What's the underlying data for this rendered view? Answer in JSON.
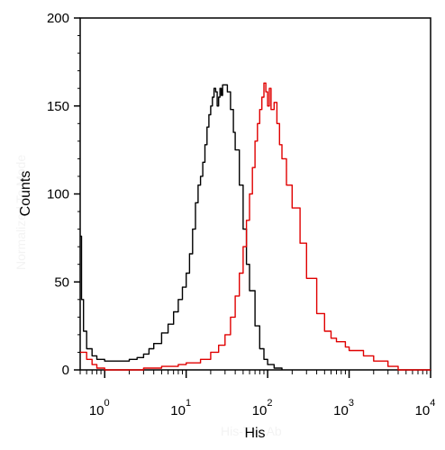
{
  "chart_data": {
    "type": "line",
    "title": "",
    "xlabel": "His",
    "ylabel": "Counts",
    "x_scale": "log",
    "xlim": [
      0.5,
      10000
    ],
    "ylim": [
      0,
      200
    ],
    "x_tick_values": [
      1,
      10,
      100,
      1000,
      10000
    ],
    "x_tick_labels": [
      {
        "base": "10",
        "exp": "0"
      },
      {
        "base": "10",
        "exp": "1"
      },
      {
        "base": "10",
        "exp": "2"
      },
      {
        "base": "10",
        "exp": "3"
      },
      {
        "base": "10",
        "exp": "4"
      }
    ],
    "y_ticks": [
      0,
      50,
      100,
      150,
      200
    ],
    "y_tick_labels": [
      "0",
      "50",
      "100",
      "150",
      "200"
    ],
    "grid": false,
    "series": [
      {
        "color": "#000000",
        "points": [
          [
            0.5,
            76
          ],
          [
            0.52,
            40
          ],
          [
            0.55,
            22
          ],
          [
            0.6,
            12
          ],
          [
            0.7,
            8
          ],
          [
            0.8,
            6
          ],
          [
            1.0,
            5
          ],
          [
            1.5,
            5
          ],
          [
            2.0,
            6
          ],
          [
            2.5,
            7
          ],
          [
            3.0,
            9
          ],
          [
            3.5,
            12
          ],
          [
            4.0,
            15
          ],
          [
            5.0,
            21
          ],
          [
            6.0,
            26
          ],
          [
            7.0,
            33
          ],
          [
            8.0,
            40
          ],
          [
            9.0,
            47
          ],
          [
            10,
            55
          ],
          [
            11,
            66
          ],
          [
            12,
            80
          ],
          [
            13,
            95
          ],
          [
            14,
            105
          ],
          [
            15,
            110
          ],
          [
            16,
            118
          ],
          [
            17,
            128
          ],
          [
            18,
            138
          ],
          [
            19,
            145
          ],
          [
            20,
            150
          ],
          [
            21,
            155
          ],
          [
            22,
            160
          ],
          [
            23,
            158
          ],
          [
            24,
            150
          ],
          [
            25,
            155
          ],
          [
            26,
            160
          ],
          [
            27,
            156
          ],
          [
            28,
            162
          ],
          [
            30,
            162
          ],
          [
            32,
            158
          ],
          [
            35,
            148
          ],
          [
            38,
            135
          ],
          [
            40,
            125
          ],
          [
            45,
            105
          ],
          [
            50,
            80
          ],
          [
            55,
            60
          ],
          [
            60,
            45
          ],
          [
            70,
            25
          ],
          [
            80,
            12
          ],
          [
            90,
            6
          ],
          [
            100,
            3
          ],
          [
            120,
            1
          ],
          [
            150,
            0
          ]
        ]
      },
      {
        "color": "#e00000",
        "points": [
          [
            0.5,
            10
          ],
          [
            0.6,
            6
          ],
          [
            0.7,
            3
          ],
          [
            0.8,
            1
          ],
          [
            1.0,
            0
          ],
          [
            2.0,
            0
          ],
          [
            3.0,
            1
          ],
          [
            5.0,
            2
          ],
          [
            8.0,
            3
          ],
          [
            10,
            4
          ],
          [
            15,
            6
          ],
          [
            20,
            10
          ],
          [
            25,
            14
          ],
          [
            30,
            20
          ],
          [
            35,
            30
          ],
          [
            40,
            42
          ],
          [
            45,
            55
          ],
          [
            50,
            70
          ],
          [
            55,
            85
          ],
          [
            60,
            100
          ],
          [
            65,
            115
          ],
          [
            70,
            130
          ],
          [
            75,
            140
          ],
          [
            80,
            148
          ],
          [
            85,
            155
          ],
          [
            90,
            163
          ],
          [
            95,
            158
          ],
          [
            100,
            150
          ],
          [
            105,
            160
          ],
          [
            110,
            148
          ],
          [
            120,
            152
          ],
          [
            130,
            140
          ],
          [
            140,
            128
          ],
          [
            150,
            120
          ],
          [
            170,
            105
          ],
          [
            200,
            92
          ],
          [
            250,
            72
          ],
          [
            300,
            52
          ],
          [
            400,
            32
          ],
          [
            500,
            22
          ],
          [
            600,
            18
          ],
          [
            700,
            16
          ],
          [
            900,
            13
          ],
          [
            1000,
            11
          ],
          [
            1500,
            8
          ],
          [
            2000,
            5
          ],
          [
            3000,
            2
          ],
          [
            4000,
            0
          ],
          [
            10000,
            0
          ]
        ]
      }
    ]
  }
}
